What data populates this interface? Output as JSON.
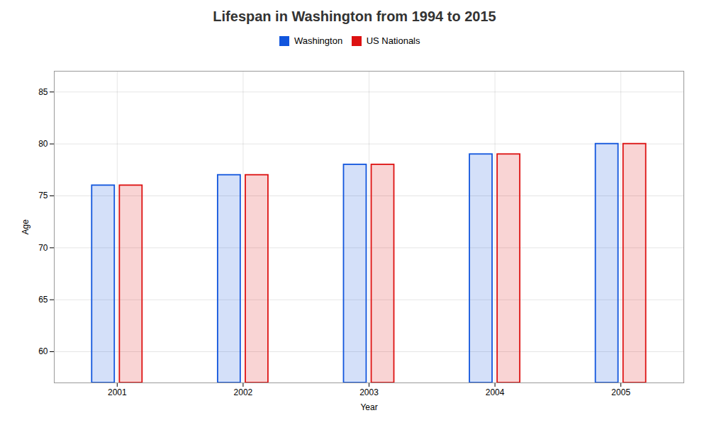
{
  "chart_data": {
    "type": "bar",
    "title": "Lifespan in Washington from 1994 to 2015",
    "xlabel": "Year",
    "ylabel": "Age",
    "categories": [
      "2001",
      "2002",
      "2003",
      "2004",
      "2005"
    ],
    "series": [
      {
        "name": "Washington",
        "color": "#1155dd",
        "values": [
          76,
          77,
          78,
          79,
          80
        ]
      },
      {
        "name": "US Nationals",
        "color": "#dd1111",
        "values": [
          76,
          77,
          78,
          79,
          80
        ]
      }
    ],
    "ylim": [
      57,
      87
    ],
    "yticks": [
      60,
      65,
      70,
      75,
      80,
      85
    ],
    "grid": true,
    "legend": "top"
  }
}
